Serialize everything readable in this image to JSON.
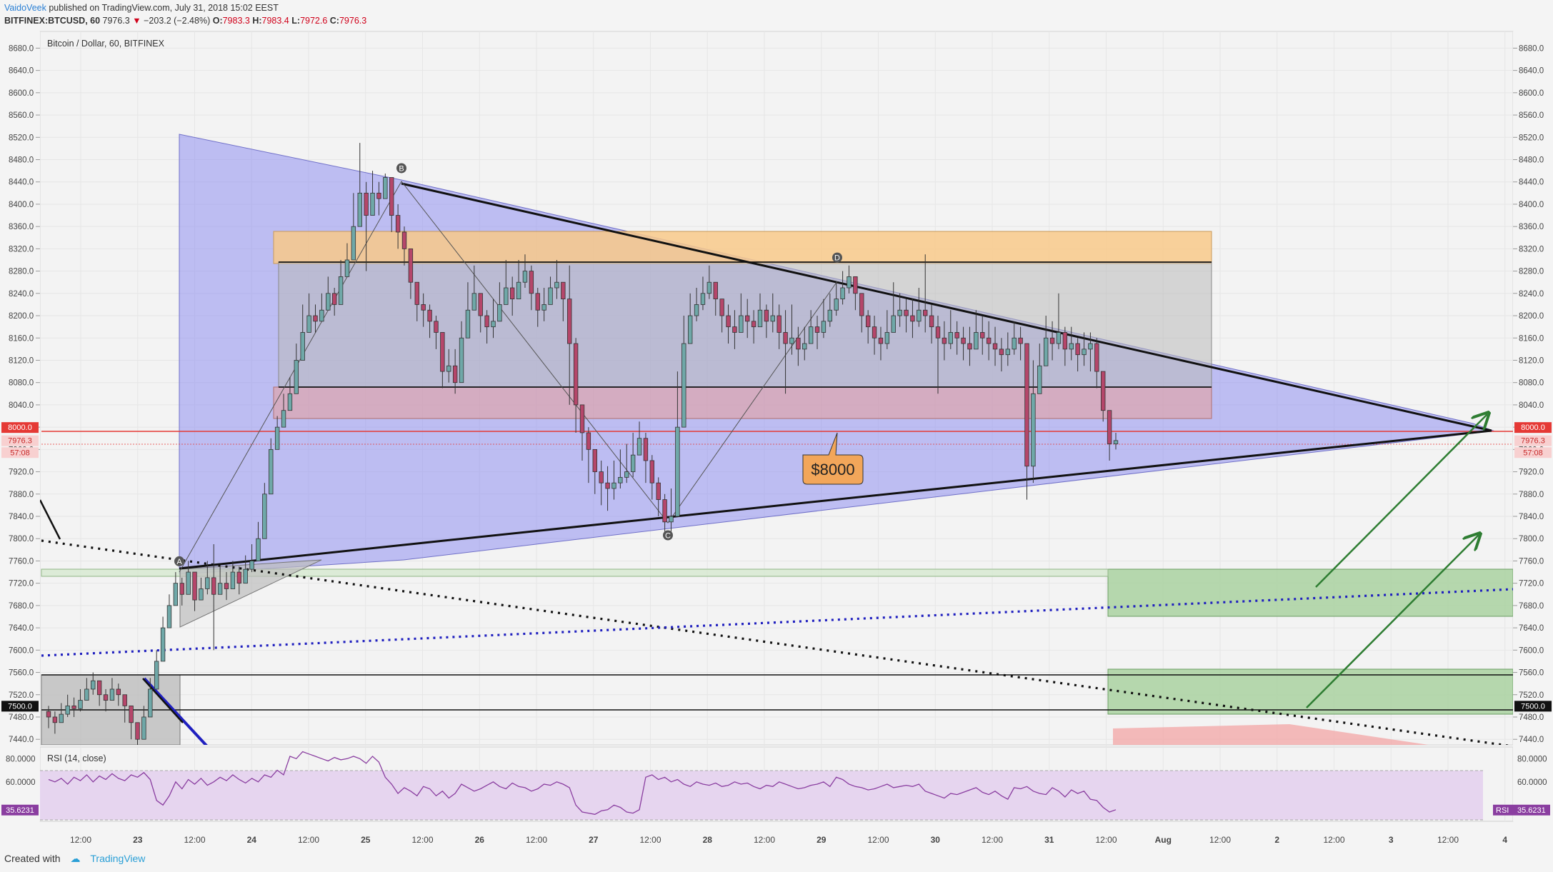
{
  "header": {
    "author": "VaidoVeek",
    "published": "published on TradingView.com, July 31, 2018 15:02 EEST",
    "symbol": "BITFINEX:BTCUSD, 60",
    "last": "7976.3",
    "change": "−203.2 (−2.48%)",
    "o_label": "O:",
    "o": "7983.3",
    "h_label": "H:",
    "h": "7983.4",
    "l_label": "L:",
    "l": "7972.6",
    "c_label": "C:",
    "c": "7976.3"
  },
  "chart_title": "Bitcoin / Dollar, 60, BITFINEX",
  "footer": {
    "created": "Created with",
    "brand": "TradingView"
  },
  "colors": {
    "triangle_fill": "#8f8ff0",
    "resistance_zone": "#f8c98a",
    "box_zone": "#c8c8c8",
    "red_zone": "#e3a0a0",
    "green_zone": "#a9d1a0",
    "level_line": "#e53935",
    "blue_trend": "#1f1fbf",
    "arrow": "#2e7d32",
    "rsi_band": "#e6d5ef",
    "rsi_line": "#8a3ea0",
    "callout": "#f2a65a",
    "bull": "#6fa8a8",
    "bear": "#b5466a"
  },
  "chart_data": [
    {
      "type": "line",
      "name": "price",
      "ylim": [
        7430,
        8710
      ],
      "yticks": [
        "8680.0",
        "8640.0",
        "8600.0",
        "8560.0",
        "8520.0",
        "8480.0",
        "8440.0",
        "8400.0",
        "8360.0",
        "8320.0",
        "8280.0",
        "8240.0",
        "8200.0",
        "8160.0",
        "8120.0",
        "8080.0",
        "8040.0",
        "8000.0",
        "7960.0",
        "7920.0",
        "7880.0",
        "7840.0",
        "7800.0",
        "7760.0",
        "7720.0",
        "7680.0",
        "7640.0",
        "7600.0",
        "7560.0",
        "7520.0",
        "7480.0",
        "7440.0"
      ],
      "xticks": [
        "12:00",
        "23",
        "12:00",
        "24",
        "12:00",
        "25",
        "12:00",
        "26",
        "12:00",
        "27",
        "12:00",
        "28",
        "12:00",
        "29",
        "12:00",
        "30",
        "12:00",
        "31",
        "12:00",
        "Aug",
        "12:00",
        "2",
        "12:00",
        "3",
        "12:00",
        "4"
      ],
      "price_labels": [
        {
          "text": "8000.0",
          "value": 8000,
          "style": "red"
        },
        {
          "text": "7976.3",
          "value": 7976.3,
          "style": "redlight"
        },
        {
          "text": "57:08",
          "value": 7955,
          "style": "redlight"
        },
        {
          "text": "7500.0",
          "value": 7500,
          "style": "black"
        }
      ],
      "points": [
        {
          "label": "A",
          "value": 7744
        },
        {
          "label": "B",
          "value": 8448
        },
        {
          "label": "C",
          "value": 7824
        },
        {
          "label": "D",
          "value": 8289
        }
      ],
      "annotations": [
        {
          "text": "$8000",
          "value": 8000
        }
      ],
      "values": [
        7480,
        7470,
        7485,
        7500,
        7495,
        7510,
        7530,
        7545,
        7520,
        7510,
        7530,
        7520,
        7500,
        7470,
        7440,
        7480,
        7530,
        7580,
        7640,
        7680,
        7720,
        7700,
        7740,
        7690,
        7710,
        7730,
        7700,
        7720,
        7710,
        7740,
        7720,
        7745,
        7760,
        7800,
        7880,
        7960,
        8000,
        8030,
        8060,
        8120,
        8170,
        8200,
        8190,
        8210,
        8240,
        8220,
        8270,
        8300,
        8360,
        8420,
        8380,
        8420,
        8410,
        8448,
        8380,
        8350,
        8320,
        8260,
        8220,
        8210,
        8190,
        8170,
        8100,
        8110,
        8080,
        8160,
        8210,
        8240,
        8200,
        8180,
        8190,
        8220,
        8250,
        8230,
        8260,
        8280,
        8240,
        8210,
        8220,
        8250,
        8260,
        8230,
        8150,
        8040,
        7990,
        7960,
        7920,
        7900,
        7890,
        7900,
        7910,
        7920,
        7950,
        7980,
        7940,
        7900,
        7870,
        7830,
        7840,
        8000,
        8150,
        8200,
        8220,
        8240,
        8260,
        8230,
        8200,
        8180,
        8170,
        8200,
        8190,
        8180,
        8210,
        8190,
        8200,
        8170,
        8150,
        8160,
        8140,
        8150,
        8180,
        8170,
        8190,
        8210,
        8230,
        8250,
        8270,
        8240,
        8200,
        8180,
        8160,
        8150,
        8170,
        8200,
        8210,
        8200,
        8190,
        8210,
        8200,
        8180,
        8160,
        8150,
        8170,
        8160,
        8150,
        8140,
        8170,
        8160,
        8150,
        8140,
        8130,
        8140,
        8160,
        8150,
        7930,
        8060,
        8110,
        8160,
        8150,
        8170,
        8140,
        8150,
        8130,
        8140,
        8150,
        8100,
        8030,
        7970,
        7976
      ],
      "highs": [
        7500,
        7490,
        7505,
        7520,
        7515,
        7530,
        7550,
        7560,
        7540,
        7530,
        7550,
        7540,
        7520,
        7500,
        7470,
        7500,
        7550,
        7600,
        7660,
        7700,
        7740,
        7730,
        7760,
        7720,
        7730,
        7760,
        7790,
        7750,
        7740,
        7760,
        7750,
        7770,
        7790,
        7830,
        7900,
        7980,
        8020,
        8060,
        8090,
        8150,
        8220,
        8240,
        8220,
        8240,
        8270,
        8250,
        8300,
        8330,
        8420,
        8510,
        8440,
        8460,
        8440,
        8455,
        8440,
        8400,
        8360,
        8310,
        8260,
        8240,
        8220,
        8200,
        8140,
        8140,
        8140,
        8190,
        8260,
        8290,
        8240,
        8210,
        8230,
        8260,
        8300,
        8270,
        8300,
        8310,
        8290,
        8250,
        8250,
        8270,
        8300,
        8260,
        8290,
        8160,
        8040,
        8000,
        7960,
        7940,
        7930,
        7940,
        7960,
        7970,
        7990,
        8010,
        7990,
        7950,
        7910,
        7880,
        7890,
        8100,
        8200,
        8240,
        8250,
        8270,
        8290,
        8260,
        8230,
        8220,
        8210,
        8240,
        8230,
        8210,
        8240,
        8220,
        8240,
        8220,
        8210,
        8220,
        8180,
        8180,
        8210,
        8200,
        8230,
        8240,
        8260,
        8280,
        8290,
        8270,
        8240,
        8210,
        8200,
        8180,
        8210,
        8260,
        8240,
        8230,
        8230,
        8250,
        8310,
        8220,
        8200,
        8190,
        8210,
        8190,
        8180,
        8180,
        8210,
        8200,
        8190,
        8180,
        8160,
        8170,
        8190,
        8180,
        8020,
        8120,
        8150,
        8200,
        8190,
        8240,
        8180,
        8180,
        8160,
        8170,
        8170,
        8160,
        8060,
        8020,
        7990
      ],
      "lows": [
        7460,
        7450,
        7470,
        7480,
        7480,
        7490,
        7510,
        7520,
        7500,
        7490,
        7510,
        7500,
        7470,
        7440,
        7420,
        7460,
        7510,
        7560,
        7620,
        7660,
        7700,
        7680,
        7710,
        7670,
        7690,
        7700,
        7600,
        7700,
        7690,
        7710,
        7700,
        7720,
        7740,
        7780,
        7850,
        7930,
        7980,
        8010,
        8040,
        8090,
        8150,
        8170,
        8170,
        8190,
        8210,
        8200,
        8240,
        8280,
        8330,
        8390,
        8280,
        8390,
        8380,
        8420,
        8350,
        8320,
        8290,
        8230,
        8190,
        8180,
        8160,
        8140,
        8070,
        8080,
        8060,
        8130,
        8180,
        8210,
        8170,
        8150,
        8160,
        8190,
        8220,
        8200,
        8230,
        8250,
        8210,
        8180,
        8190,
        8220,
        8230,
        8190,
        8040,
        7990,
        7940,
        7900,
        7880,
        7860,
        7850,
        7870,
        7890,
        7900,
        7910,
        7950,
        7900,
        7870,
        7840,
        7810,
        7800,
        7840,
        8100,
        8170,
        8190,
        8210,
        8230,
        8200,
        8170,
        8150,
        8140,
        8170,
        8160,
        8150,
        8180,
        8160,
        8170,
        8140,
        8060,
        8130,
        8110,
        8120,
        8150,
        8140,
        8160,
        8180,
        8200,
        8220,
        8240,
        8210,
        8170,
        8150,
        8130,
        8120,
        8140,
        8170,
        8180,
        8170,
        8160,
        8180,
        8170,
        8150,
        8060,
        8120,
        8140,
        8130,
        8120,
        8110,
        8140,
        8130,
        8120,
        8110,
        8100,
        8110,
        8130,
        8120,
        7870,
        7900,
        8080,
        8130,
        8120,
        8140,
        8110,
        8120,
        8100,
        8110,
        8100,
        8070,
        8010,
        7940,
        7960
      ]
    },
    {
      "type": "line",
      "name": "RSI (14, close)",
      "ylim": [
        26,
        90
      ],
      "yticks": [
        "80.0000",
        "60.0000"
      ],
      "last_label": "35.6231",
      "tag": "RSI",
      "values": [
        62,
        60,
        63,
        58,
        64,
        61,
        66,
        60,
        65,
        62,
        67,
        63,
        61,
        66,
        64,
        68,
        62,
        44,
        40,
        48,
        60,
        54,
        62,
        58,
        63,
        57,
        60,
        64,
        61,
        66,
        62,
        59,
        63,
        60,
        66,
        64,
        70,
        66,
        82,
        80,
        86,
        84,
        82,
        80,
        78,
        81,
        79,
        80,
        82,
        80,
        76,
        82,
        77,
        64,
        58,
        50,
        55,
        52,
        48,
        56,
        54,
        48,
        52,
        46,
        50,
        58,
        55,
        52,
        54,
        57,
        60,
        56,
        54,
        59,
        56,
        55,
        52,
        54,
        58,
        57,
        60,
        58,
        55,
        40,
        34,
        33,
        32,
        35,
        36,
        40,
        38,
        34,
        33,
        36,
        64,
        66,
        62,
        64,
        60,
        62,
        58,
        56,
        60,
        58,
        57,
        59,
        56,
        57,
        60,
        58,
        59,
        56,
        54,
        57,
        56,
        60,
        58,
        56,
        54,
        55,
        57,
        58,
        60,
        56,
        64,
        62,
        58,
        56,
        55,
        53,
        54,
        56,
        58,
        55,
        56,
        57,
        56,
        58,
        52,
        50,
        48,
        46,
        50,
        49,
        51,
        53,
        55,
        51,
        49,
        52,
        48,
        45,
        55,
        54,
        56,
        52,
        50,
        49,
        55,
        52,
        47,
        53,
        50,
        52,
        45,
        44,
        38,
        34,
        36
      ]
    }
  ]
}
